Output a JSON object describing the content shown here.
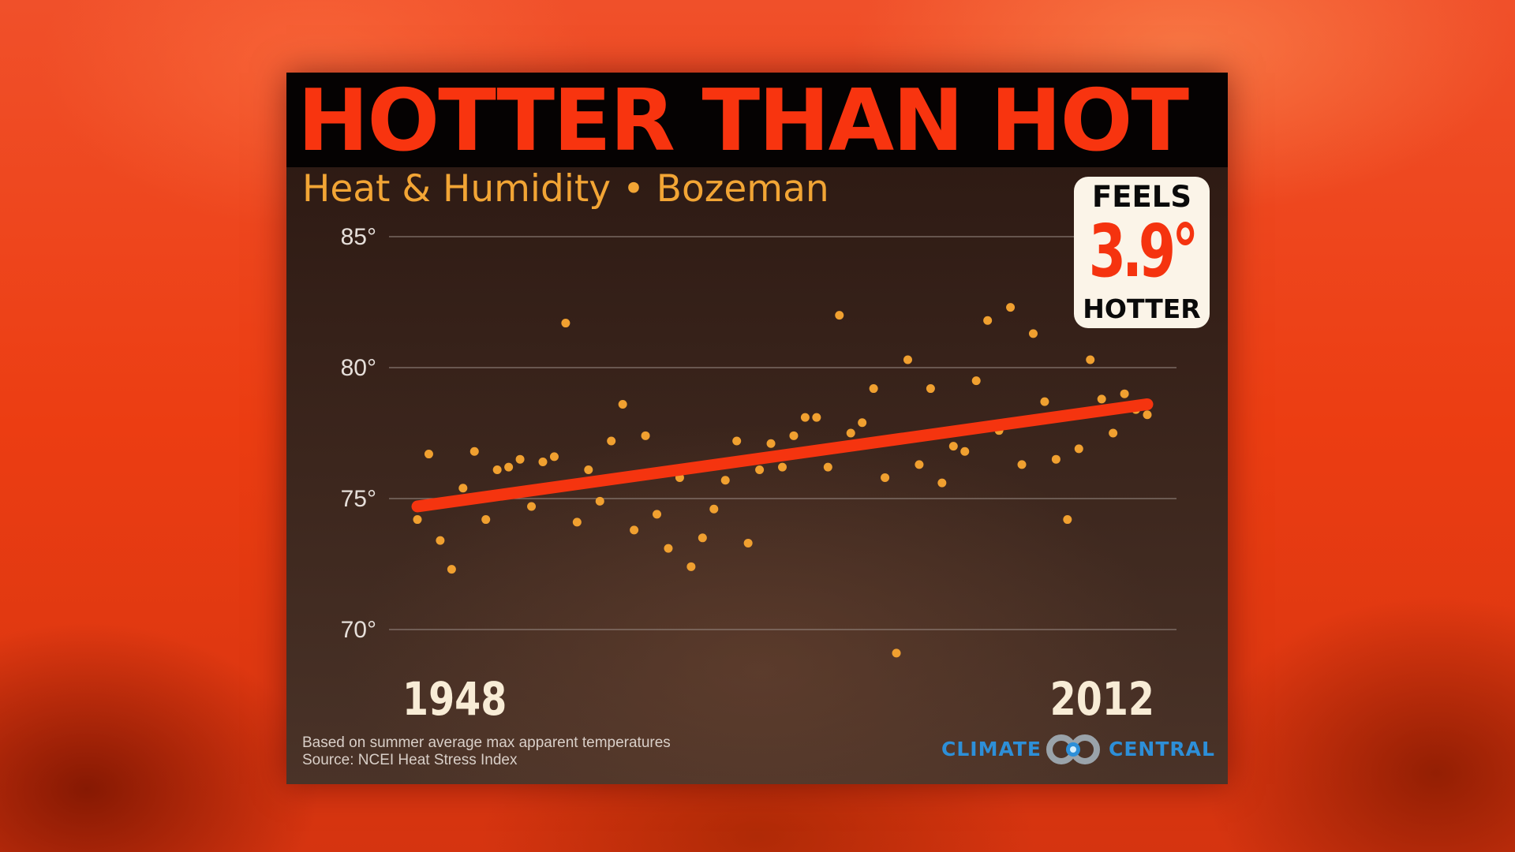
{
  "title": "HOTTER THAN HOT",
  "subtitle": "Heat & Humidity • Bozeman",
  "callout": {
    "top": "FEELS",
    "value": "3.9°",
    "bottom": "HOTTER"
  },
  "notes": {
    "line1": "Based on summer average max apparent temperatures",
    "line2": "Source: NCEI  Heat Stress Index"
  },
  "brand": {
    "left": "CLIMATE",
    "right": "CENTRAL",
    "logo_icon": "climate-central-rings-logo",
    "color": "#2d8fd8"
  },
  "colors": {
    "title": "#f8340f",
    "subtitle": "#f2a535",
    "points": "#f0a030",
    "trend": "#f5340f",
    "grid": "#9a8d86",
    "tick": "#e6dfda",
    "year_label": "#f8ecd6"
  },
  "chart_data": {
    "type": "scatter",
    "title": "",
    "xlabel": "",
    "ylabel": "",
    "x_labels": [
      "1948",
      "2012"
    ],
    "xlim": [
      1948,
      2012
    ],
    "ylim": [
      70,
      85
    ],
    "yticks": [
      70,
      75,
      80,
      85
    ],
    "ytick_labels": [
      "70°",
      "75°",
      "80°",
      "85°"
    ],
    "grid": true,
    "x": [
      1948,
      1949,
      1950,
      1951,
      1952,
      1953,
      1954,
      1955,
      1956,
      1957,
      1958,
      1959,
      1960,
      1961,
      1962,
      1963,
      1964,
      1965,
      1966,
      1967,
      1968,
      1969,
      1970,
      1971,
      1972,
      1973,
      1974,
      1975,
      1976,
      1977,
      1978,
      1979,
      1980,
      1981,
      1982,
      1983,
      1984,
      1985,
      1986,
      1987,
      1988,
      1989,
      1990,
      1991,
      1992,
      1993,
      1994,
      1995,
      1996,
      1997,
      1998,
      1999,
      2000,
      2001,
      2002,
      2003,
      2004,
      2005,
      2006,
      2007,
      2008,
      2009,
      2010,
      2011,
      2012
    ],
    "y": [
      74.2,
      76.7,
      73.4,
      72.3,
      75.4,
      76.8,
      74.2,
      76.1,
      76.2,
      76.5,
      74.7,
      76.4,
      76.6,
      81.7,
      74.1,
      76.1,
      74.9,
      77.2,
      78.6,
      73.8,
      77.4,
      74.4,
      73.1,
      75.8,
      72.4,
      73.5,
      74.6,
      75.7,
      77.2,
      73.3,
      76.1,
      77.1,
      76.2,
      77.4,
      78.1,
      78.1,
      76.2,
      82.0,
      77.5,
      77.9,
      79.2,
      75.8,
      69.1,
      80.3,
      76.3,
      79.2,
      75.6,
      77.0,
      76.8,
      79.5,
      81.8,
      77.6,
      82.3,
      76.3,
      81.3,
      78.7,
      76.5,
      74.2,
      76.9,
      80.3,
      78.8,
      77.5,
      79.0,
      78.4,
      78.2
    ],
    "trend": {
      "start": [
        1948,
        74.7
      ],
      "end": [
        2012,
        78.6
      ]
    }
  }
}
